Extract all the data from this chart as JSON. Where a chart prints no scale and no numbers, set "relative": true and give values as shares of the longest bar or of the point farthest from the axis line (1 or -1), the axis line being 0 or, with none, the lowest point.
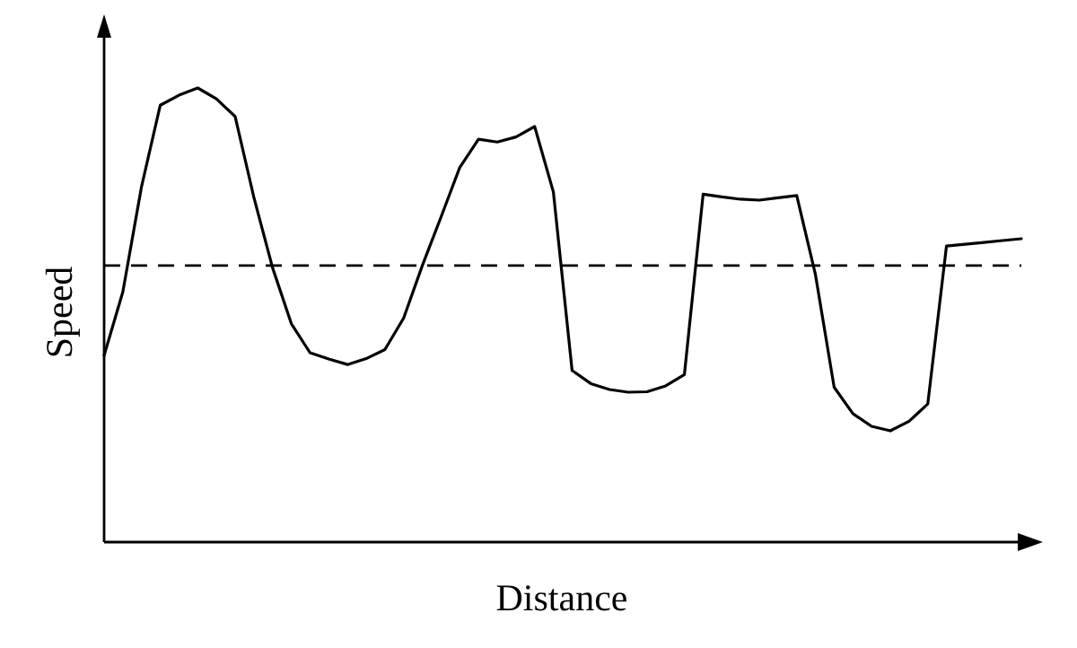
{
  "chart_data": {
    "type": "line",
    "xlabel": "Distance",
    "ylabel": "Speed",
    "relative": true,
    "line_style": "solid",
    "categories": [
      null,
      null,
      null,
      null,
      null,
      null,
      null,
      null,
      null,
      null,
      null,
      null,
      null,
      null,
      null,
      null,
      null,
      null,
      null,
      null,
      null,
      null,
      null,
      null,
      null,
      null,
      null,
      null,
      null,
      null,
      null,
      null,
      null,
      null,
      null,
      null,
      null,
      null,
      null,
      null,
      null,
      null,
      null,
      null,
      null,
      null,
      null,
      null,
      null,
      null
    ],
    "series": [
      {
        "color": "#000000",
        "values": [
          0.411,
          0.551,
          0.783,
          0.962,
          0.984,
          1,
          0.976,
          0.937,
          0.759,
          0.604,
          0.481,
          0.417,
          0.403,
          0.391,
          0.404,
          0.424,
          0.493,
          0.609,
          0.716,
          0.825,
          0.887,
          0.881,
          0.892,
          0.915,
          0.771,
          0.378,
          0.349,
          0.336,
          0.33,
          0.331,
          0.344,
          0.369,
          0.766,
          0.76,
          0.755,
          0.753,
          0.758,
          0.763,
          0.589,
          0.341,
          0.283,
          0.255,
          0.245,
          0.266,
          0.304,
          0.652,
          0.656,
          0.66,
          0.664,
          0.668
        ]
      }
    ],
    "ref_lines": [
      {
        "axis": "y",
        "value": 0.609,
        "color": "#000000",
        "line_style": "dashed"
      }
    ]
  }
}
